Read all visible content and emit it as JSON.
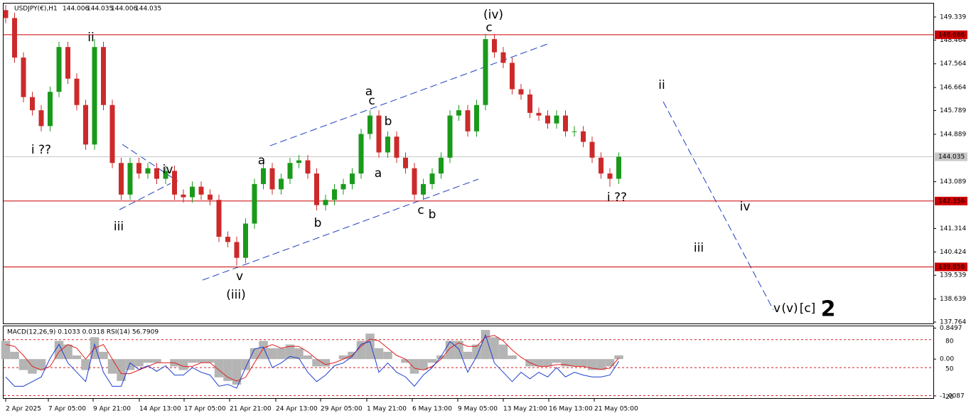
{
  "chart_data": {
    "type": "candlestick",
    "title": "USDJPY(€),H1",
    "quote": [
      "144.006",
      "144.035",
      "144.006",
      "144.035"
    ],
    "up_color": "#1a9a1a",
    "down_color": "#cc2a2a",
    "xlim": [
      -0.24,
      104.4
    ],
    "ylim": [
      137.71,
      149.85
    ],
    "open": [
      149.6,
      149.3,
      147.8,
      146.3,
      145.8,
      145.2,
      146.5,
      148.2,
      147.0,
      146.0,
      144.5,
      148.2,
      146.0,
      143.8,
      142.6,
      143.8,
      143.4,
      143.6,
      143.2,
      143.5,
      142.6,
      142.5,
      142.9,
      142.6,
      142.4,
      141.0,
      140.8,
      140.2,
      141.5,
      143.0,
      143.6,
      142.8,
      143.2,
      143.8,
      143.9,
      143.4,
      142.2,
      142.4,
      142.8,
      143.0,
      143.4,
      144.9,
      145.6,
      144.2,
      144.8,
      144.0,
      143.6,
      142.6,
      143.0,
      143.4,
      144.0,
      145.6,
      145.8,
      145.0,
      146.0,
      148.5,
      148.0,
      147.6,
      146.6,
      146.4,
      145.7,
      145.6,
      145.3,
      145.6,
      145.0,
      145.0,
      144.6,
      144.0,
      143.4,
      143.2
    ],
    "high": [
      149.8,
      149.5,
      148.0,
      146.5,
      146.0,
      146.7,
      148.4,
      148.4,
      147.2,
      146.2,
      148.5,
      148.4,
      146.2,
      144.0,
      144.0,
      144.0,
      143.8,
      143.8,
      143.7,
      143.7,
      142.8,
      143.1,
      143.1,
      142.8,
      142.6,
      141.2,
      141.0,
      141.7,
      143.2,
      143.8,
      143.8,
      143.4,
      144.0,
      144.1,
      144.1,
      143.6,
      142.6,
      143.0,
      143.2,
      143.6,
      145.1,
      145.8,
      145.8,
      145.0,
      145.0,
      144.2,
      143.8,
      143.2,
      143.6,
      144.2,
      145.8,
      146.0,
      146.0,
      146.2,
      148.7,
      148.7,
      148.2,
      147.8,
      146.8,
      146.6,
      145.9,
      145.8,
      145.8,
      145.8,
      145.2,
      145.2,
      144.8,
      144.2,
      143.6,
      144.2
    ],
    "low": [
      149.1,
      147.6,
      146.1,
      145.6,
      145.0,
      145.0,
      146.3,
      146.8,
      145.8,
      144.3,
      144.3,
      145.8,
      143.6,
      142.4,
      142.4,
      143.2,
      143.2,
      143.0,
      143.0,
      142.4,
      142.3,
      142.3,
      142.4,
      142.2,
      140.8,
      140.6,
      139.9,
      140.0,
      141.3,
      142.8,
      142.6,
      142.6,
      143.0,
      143.6,
      143.2,
      142.0,
      142.0,
      142.2,
      142.6,
      142.8,
      143.2,
      144.7,
      144.0,
      144.0,
      143.8,
      143.4,
      142.4,
      142.4,
      142.8,
      143.2,
      143.8,
      145.4,
      144.8,
      144.8,
      145.8,
      147.8,
      147.4,
      146.4,
      146.2,
      145.5,
      145.4,
      145.1,
      145.1,
      144.8,
      144.8,
      144.4,
      143.8,
      143.2,
      142.9,
      143.0
    ],
    "close": [
      149.3,
      147.8,
      146.3,
      145.8,
      145.2,
      146.5,
      148.2,
      147.0,
      146.0,
      144.5,
      148.2,
      146.0,
      143.8,
      142.6,
      143.8,
      143.4,
      143.6,
      143.2,
      143.5,
      142.6,
      142.5,
      142.9,
      142.6,
      142.4,
      141.0,
      140.8,
      140.2,
      141.5,
      143.0,
      143.6,
      142.8,
      143.2,
      143.8,
      143.9,
      143.4,
      142.2,
      142.4,
      142.8,
      143.0,
      143.4,
      144.9,
      145.6,
      144.2,
      144.8,
      144.0,
      143.6,
      142.6,
      143.0,
      143.4,
      144.0,
      145.6,
      145.8,
      145.0,
      146.0,
      148.5,
      148.0,
      147.6,
      146.6,
      146.4,
      145.7,
      145.6,
      145.3,
      145.6,
      145.0,
      145.0,
      144.6,
      144.0,
      143.4,
      143.2,
      144.035
    ],
    "yticks": [
      149.339,
      148.464,
      147.564,
      146.664,
      145.789,
      144.889,
      143.089,
      141.314,
      140.424,
      139.539,
      138.639,
      137.764
    ],
    "levels": [
      {
        "value": 148.666,
        "color": "#cc0000"
      },
      {
        "value": 142.356,
        "color": "#cc0000"
      },
      {
        "value": 139.856,
        "color": "#cc0000"
      }
    ],
    "last_price": {
      "value": 144.035,
      "color": "#c8c8c8"
    },
    "xticks": [
      {
        "value": 0,
        "label": "2 Apr 2025"
      },
      {
        "value": 4.8,
        "label": "7 Apr 05:00"
      },
      {
        "value": 9.84,
        "label": "9 Apr 21:00"
      },
      {
        "value": 15.04,
        "label": "14 Apr 13:00"
      },
      {
        "value": 20.08,
        "label": "17 Apr 05:00"
      },
      {
        "value": 25.2,
        "label": "21 Apr 21:00"
      },
      {
        "value": 30.4,
        "label": "24 Apr 13:00"
      },
      {
        "value": 35.44,
        "label": "29 Apr 05:00"
      },
      {
        "value": 40.64,
        "label": "1 May 21:00"
      },
      {
        "value": 45.76,
        "label": "6 May 13:00"
      },
      {
        "value": 50.88,
        "label": "9 May 05:00"
      },
      {
        "value": 56,
        "label": "13 May 21:00"
      },
      {
        "value": 61.12,
        "label": "16 May 13:00"
      },
      {
        "value": 66.24,
        "label": "21 May 05:00"
      }
    ],
    "annotations": [
      {
        "text": "(iv)",
        "color": "#1f3fbf"
      },
      {
        "text": "c",
        "color": "#e020e0"
      },
      {
        "text": "ii",
        "color": "#e020e0"
      },
      {
        "text": "i ??",
        "color": "#e020e0"
      },
      {
        "text": "iii",
        "color": "#e020e0"
      },
      {
        "text": "iv",
        "color": "#e020e0"
      },
      {
        "text": "v",
        "color": "#e020e0"
      },
      {
        "text": "(iii)",
        "color": "#1f3fbf"
      },
      {
        "text": "a",
        "color": "#000000"
      },
      {
        "text": "b",
        "color": "#000000"
      },
      {
        "text": "a",
        "color": "#e020e0"
      },
      {
        "text": "c",
        "color": "#000000"
      },
      {
        "text": "b",
        "color": "#000000"
      },
      {
        "text": "a",
        "color": "#000000"
      },
      {
        "text": "c",
        "color": "#000000"
      },
      {
        "text": "b",
        "color": "#e020e0"
      },
      {
        "text": "i ??",
        "color": "#e020e0"
      },
      {
        "text": "ii",
        "color": "#e020e0"
      },
      {
        "text": "iv",
        "color": "#e020e0"
      },
      {
        "text": "iii",
        "color": "#e020e0"
      },
      {
        "text": "v",
        "color": "#e020e0"
      },
      {
        "text": "(v)",
        "color": "#1f3fbf"
      },
      {
        "text": "[c]",
        "color": "#1a8a1a"
      },
      {
        "text": "2",
        "color": "#e02020"
      }
    ],
    "indicator": {
      "title": "MACD(12,26,9) 0.1033 0.0318 RSI(14) 56.7909",
      "ylim": [
        -1.07,
        0.9
      ],
      "yticks": [
        0.8497,
        {
          "value": 0,
          "label": "0.00"
        },
        -1.0087
      ],
      "macd_color": "#b4b4b4",
      "macd": [
        0.5,
        0.2,
        -0.3,
        -0.4,
        -0.3,
        0.0,
        0.5,
        0.4,
        0.1,
        -0.3,
        0.6,
        0.2,
        -0.4,
        -0.6,
        -0.3,
        -0.2,
        -0.1,
        -0.1,
        0.0,
        -0.2,
        -0.3,
        -0.1,
        -0.1,
        -0.1,
        -0.5,
        -0.6,
        -0.7,
        -0.3,
        0.3,
        0.5,
        0.3,
        0.3,
        0.4,
        0.3,
        0.1,
        -0.2,
        -0.2,
        0.0,
        0.1,
        0.2,
        0.5,
        0.7,
        0.3,
        0.2,
        0.0,
        -0.1,
        -0.4,
        -0.3,
        -0.1,
        0.1,
        0.5,
        0.5,
        0.2,
        0.4,
        0.8,
        0.6,
        0.4,
        0.1,
        0.0,
        -0.2,
        -0.2,
        -0.2,
        -0.1,
        -0.2,
        -0.2,
        -0.2,
        -0.3,
        -0.3,
        -0.2,
        0.1033
      ],
      "signal_color": "#e02020",
      "signal": [
        0.4,
        0.35,
        0.1,
        -0.2,
        -0.3,
        -0.2,
        0.2,
        0.4,
        0.3,
        0.0,
        0.3,
        0.4,
        0.0,
        -0.4,
        -0.4,
        -0.3,
        -0.2,
        -0.1,
        -0.1,
        -0.1,
        -0.2,
        -0.2,
        -0.1,
        -0.1,
        -0.3,
        -0.5,
        -0.6,
        -0.5,
        -0.1,
        0.3,
        0.4,
        0.3,
        0.35,
        0.35,
        0.2,
        0.0,
        -0.15,
        -0.1,
        0.0,
        0.1,
        0.35,
        0.55,
        0.5,
        0.3,
        0.1,
        0.0,
        -0.25,
        -0.3,
        -0.2,
        0.0,
        0.3,
        0.45,
        0.35,
        0.35,
        0.6,
        0.65,
        0.5,
        0.25,
        0.05,
        -0.1,
        -0.2,
        -0.2,
        -0.15,
        -0.15,
        -0.2,
        -0.2,
        -0.25,
        -0.28,
        -0.25,
        0.0318
      ],
      "rsi_color": "#1f3fcf",
      "rsi_ylim": [
        17.3,
        94.3
      ],
      "rsi_levels": [
        80,
        50,
        20
      ],
      "rsi": [
        40,
        30,
        30,
        35,
        40,
        60,
        75,
        55,
        45,
        35,
        75,
        45,
        30,
        30,
        55,
        48,
        52,
        46,
        52,
        42,
        42,
        50,
        45,
        42,
        30,
        32,
        28,
        50,
        70,
        72,
        50,
        55,
        62,
        60,
        45,
        35,
        42,
        52,
        55,
        62,
        75,
        78,
        45,
        55,
        45,
        40,
        30,
        42,
        50,
        62,
        78,
        70,
        45,
        62,
        85,
        55,
        45,
        35,
        45,
        38,
        45,
        40,
        50,
        40,
        45,
        42,
        40,
        40,
        42,
        56.7909
      ]
    }
  }
}
